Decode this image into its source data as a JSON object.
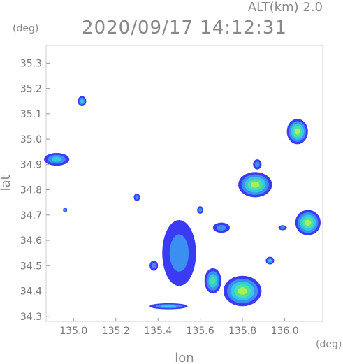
{
  "chart_data": {
    "type": "heatmap",
    "title": "2020/09/17 14:12:31",
    "altitude_label": "ALT(km) 2.0",
    "xlabel": "lon",
    "ylabel": "lat",
    "x_unit": "(deg)",
    "y_unit": "(deg)",
    "xlim": [
      134.87,
      136.18
    ],
    "ylim": [
      34.28,
      35.37
    ],
    "x_ticks": [
      "135.0",
      "135.2",
      "135.4",
      "135.6",
      "135.8",
      "136.0"
    ],
    "x_tick_values": [
      135.0,
      135.2,
      135.4,
      135.6,
      135.8,
      136.0
    ],
    "y_ticks": [
      "34.3",
      "34.4",
      "34.5",
      "34.6",
      "34.7",
      "34.8",
      "34.9",
      "35.0",
      "35.1",
      "35.2",
      "35.3"
    ],
    "y_tick_values": [
      34.3,
      34.4,
      34.5,
      34.6,
      34.7,
      34.8,
      34.9,
      35.0,
      35.1,
      35.2,
      35.3
    ],
    "grid": false,
    "colormap": [
      "#3b3bf5",
      "#3a8ff0",
      "#35c7e8",
      "#4fe0a0",
      "#a8f05a"
    ],
    "cells": [
      {
        "lon": 134.92,
        "lat": 34.92,
        "rlon": 0.06,
        "rlat": 0.025,
        "level": 2
      },
      {
        "lon": 135.04,
        "lat": 35.15,
        "rlon": 0.02,
        "rlat": 0.02,
        "level": 2
      },
      {
        "lon": 134.96,
        "lat": 34.72,
        "rlon": 0.01,
        "rlat": 0.01,
        "level": 1
      },
      {
        "lon": 136.06,
        "lat": 35.03,
        "rlon": 0.05,
        "rlat": 0.05,
        "level": 4
      },
      {
        "lon": 135.86,
        "lat": 34.82,
        "rlon": 0.08,
        "rlat": 0.05,
        "level": 4
      },
      {
        "lon": 135.87,
        "lat": 34.9,
        "rlon": 0.02,
        "rlat": 0.02,
        "level": 1
      },
      {
        "lon": 136.11,
        "lat": 34.67,
        "rlon": 0.06,
        "rlat": 0.05,
        "level": 4
      },
      {
        "lon": 135.5,
        "lat": 34.55,
        "rlon": 0.08,
        "rlat": 0.13,
        "level": 1
      },
      {
        "lon": 135.66,
        "lat": 34.44,
        "rlon": 0.04,
        "rlat": 0.05,
        "level": 3
      },
      {
        "lon": 135.8,
        "lat": 34.4,
        "rlon": 0.09,
        "rlat": 0.06,
        "level": 4
      },
      {
        "lon": 135.45,
        "lat": 34.34,
        "rlon": 0.09,
        "rlat": 0.012,
        "level": 2
      },
      {
        "lon": 135.38,
        "lat": 34.5,
        "rlon": 0.02,
        "rlat": 0.02,
        "level": 1
      },
      {
        "lon": 135.7,
        "lat": 34.65,
        "rlon": 0.04,
        "rlat": 0.02,
        "level": 1
      },
      {
        "lon": 135.99,
        "lat": 34.65,
        "rlon": 0.02,
        "rlat": 0.01,
        "level": 1
      },
      {
        "lon": 135.93,
        "lat": 34.52,
        "rlon": 0.02,
        "rlat": 0.015,
        "level": 2
      },
      {
        "lon": 135.3,
        "lat": 34.77,
        "rlon": 0.015,
        "rlat": 0.015,
        "level": 1
      },
      {
        "lon": 135.6,
        "lat": 34.72,
        "rlon": 0.015,
        "rlat": 0.015,
        "level": 1
      }
    ]
  }
}
